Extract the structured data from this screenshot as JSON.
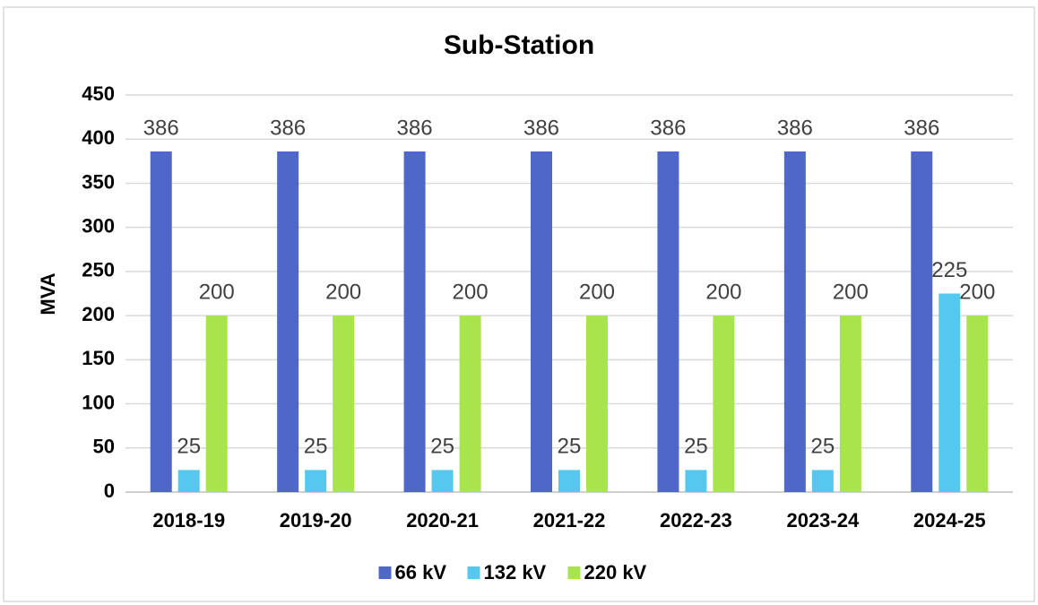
{
  "chart_data": {
    "type": "bar",
    "title": "Sub-Station",
    "y_label": "MVA",
    "categories": [
      "2018-19",
      "2019-20",
      "2020-21",
      "2021-22",
      "2022-23",
      "2023-24",
      "2024-25"
    ],
    "series": [
      {
        "name": "66 kV",
        "color": "#4f67c9",
        "values": [
          386,
          386,
          386,
          386,
          386,
          386,
          386
        ]
      },
      {
        "name": "132 kV",
        "color": "#56c8f0",
        "values": [
          25,
          25,
          25,
          25,
          25,
          25,
          225
        ]
      },
      {
        "name": "220 kV",
        "color": "#a8e44c",
        "values": [
          200,
          200,
          200,
          200,
          200,
          200,
          200
        ]
      }
    ],
    "ylim": [
      0,
      450
    ],
    "yticks": [
      0,
      50,
      100,
      150,
      200,
      250,
      300,
      350,
      400,
      450
    ],
    "grid": true
  }
}
